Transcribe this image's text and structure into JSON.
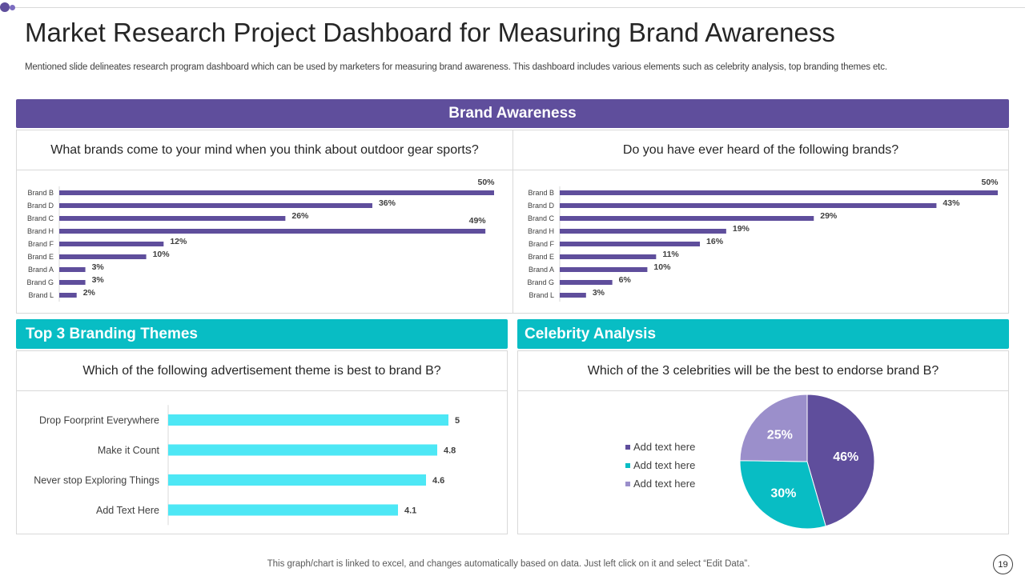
{
  "title": "Market Research Project Dashboard for Measuring Brand Awareness",
  "subtitle": "Mentioned slide delineates research program dashboard which can be used by marketers for measuring brand awareness. This dashboard includes various elements such as celebrity analysis, top branding themes etc.",
  "brand_awareness_header": "Brand Awareness",
  "branding_header": "Top 3 Branding Themes",
  "celebrity_header": "Celebrity Analysis",
  "footer": "This graph/chart is linked to excel,  and changes automatically based on data. Just left click on it and select “Edit Data”.",
  "page_number": "19",
  "colors": {
    "purple": "#5f4e9c",
    "teal": "#08bdc4",
    "cyan_bar": "#4de7f5",
    "lavender": "#9b8fcb"
  },
  "chart_data": [
    {
      "type": "bar",
      "orientation": "horizontal",
      "title": "What brands come to your mind when you think about outdoor gear sports?",
      "categories": [
        "Brand B",
        "Brand D",
        "Brand C",
        "Brand H",
        "Brand F",
        "Brand E",
        "Brand A",
        "Brand G",
        "Brand L"
      ],
      "values": [
        50,
        36,
        26,
        49,
        12,
        10,
        3,
        3,
        2
      ],
      "labels": [
        "50%",
        "36%",
        "26%",
        "49%",
        "12%",
        "10%",
        "3%",
        "3%",
        "2%"
      ],
      "xlim": [
        0,
        50
      ],
      "color": "#5f4e9c"
    },
    {
      "type": "bar",
      "orientation": "horizontal",
      "title": "Do you have ever heard of the following brands?",
      "categories": [
        "Brand B",
        "Brand D",
        "Brand C",
        "Brand H",
        "Brand F",
        "Brand E",
        "Brand A",
        "Brand G",
        "Brand L"
      ],
      "values": [
        50,
        43,
        29,
        19,
        16,
        11,
        10,
        6,
        3
      ],
      "labels": [
        "50%",
        "43%",
        "29%",
        "19%",
        "16%",
        "11%",
        "10%",
        "6%",
        "3%"
      ],
      "xlim": [
        0,
        50
      ],
      "color": "#5f4e9c"
    },
    {
      "type": "bar",
      "orientation": "horizontal",
      "title": "Which of the following advertisement theme is best to brand B?",
      "categories": [
        "Drop Foorprint Everywhere",
        "Make it Count",
        "Never stop Exploring Things",
        "Add Text Here"
      ],
      "values": [
        5,
        4.8,
        4.6,
        4.1
      ],
      "labels": [
        "5",
        "4.8",
        "4.6",
        "4.1"
      ],
      "xlim": [
        0,
        5
      ],
      "color": "#4de7f5"
    },
    {
      "type": "pie",
      "title": "Which of the 3 celebrities will be the best to endorse brand B?",
      "slices": [
        {
          "label": "Add text here",
          "value": 46,
          "display": "46%",
          "color": "#5f4e9c"
        },
        {
          "label": "Add text here",
          "value": 30,
          "display": "30%",
          "color": "#08bdc4"
        },
        {
          "label": "Add text here",
          "value": 25,
          "display": "25%",
          "color": "#9b8fcb"
        }
      ]
    }
  ]
}
